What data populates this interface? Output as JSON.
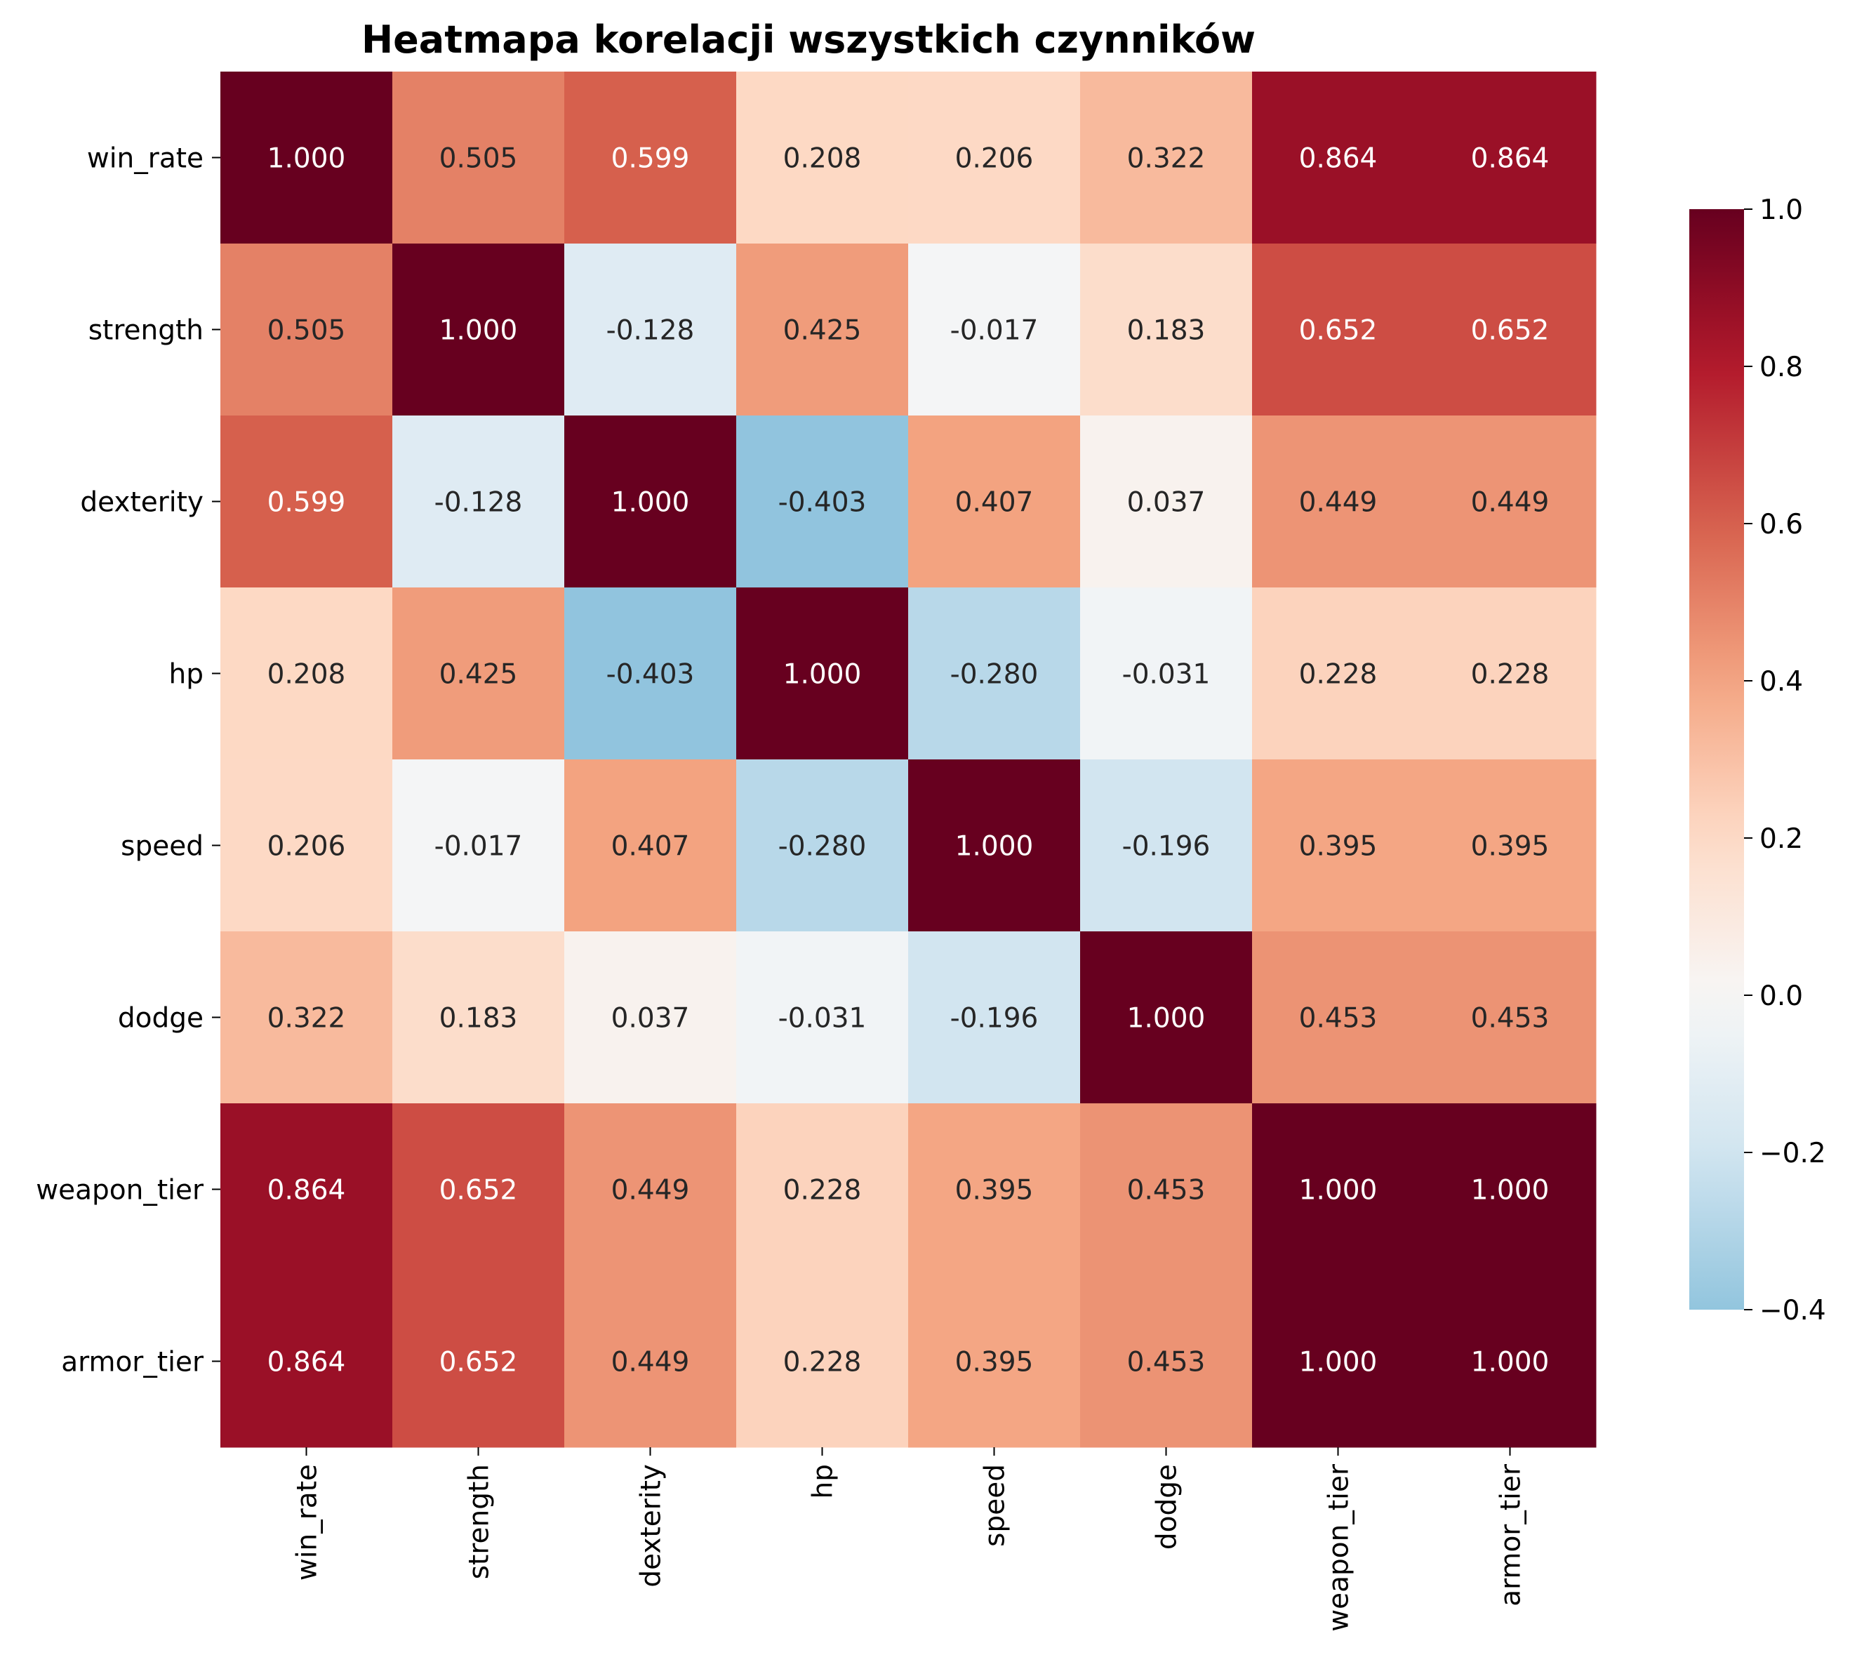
{
  "chart_data": {
    "type": "heatmap",
    "title": "Heatmapa korelacji wszystkich czynników",
    "rows": [
      "win_rate",
      "strength",
      "dexterity",
      "hp",
      "speed",
      "dodge",
      "weapon_tier",
      "armor_tier"
    ],
    "columns": [
      "win_rate",
      "strength",
      "dexterity",
      "hp",
      "speed",
      "dodge",
      "weapon_tier",
      "armor_tier"
    ],
    "values": [
      [
        1.0,
        0.505,
        0.599,
        0.208,
        0.206,
        0.322,
        0.864,
        0.864
      ],
      [
        0.505,
        1.0,
        -0.128,
        0.425,
        -0.017,
        0.183,
        0.652,
        0.652
      ],
      [
        0.599,
        -0.128,
        1.0,
        -0.403,
        0.407,
        0.037,
        0.449,
        0.449
      ],
      [
        0.208,
        0.425,
        -0.403,
        1.0,
        -0.28,
        -0.031,
        0.228,
        0.228
      ],
      [
        0.206,
        -0.017,
        0.407,
        -0.28,
        1.0,
        -0.196,
        0.395,
        0.395
      ],
      [
        0.322,
        0.183,
        0.037,
        -0.031,
        -0.196,
        1.0,
        0.453,
        0.453
      ],
      [
        0.864,
        0.652,
        0.449,
        0.228,
        0.395,
        0.453,
        1.0,
        1.0
      ],
      [
        0.864,
        0.652,
        0.449,
        0.228,
        0.395,
        0.453,
        1.0,
        1.0
      ]
    ],
    "cell_labels": [
      [
        "1.000",
        "0.505",
        "0.599",
        "0.208",
        "0.206",
        "0.322",
        "0.864",
        "0.864"
      ],
      [
        "0.505",
        "1.000",
        "-0.128",
        "0.425",
        "-0.017",
        "0.183",
        "0.652",
        "0.652"
      ],
      [
        "0.599",
        "-0.128",
        "1.000",
        "-0.403",
        "0.407",
        "0.037",
        "0.449",
        "0.449"
      ],
      [
        "0.208",
        "0.425",
        "-0.403",
        "1.000",
        "-0.280",
        "-0.031",
        "0.228",
        "0.228"
      ],
      [
        "0.206",
        "-0.017",
        "0.407",
        "-0.280",
        "1.000",
        "-0.196",
        "0.395",
        "0.395"
      ],
      [
        "0.322",
        "0.183",
        "0.037",
        "-0.031",
        "-0.196",
        "1.000",
        "0.453",
        "0.453"
      ],
      [
        "0.864",
        "0.652",
        "0.449",
        "0.228",
        "0.395",
        "0.453",
        "1.000",
        "1.000"
      ],
      [
        "0.864",
        "0.652",
        "0.449",
        "0.228",
        "0.395",
        "0.453",
        "1.000",
        "1.000"
      ]
    ],
    "colorbar": {
      "colormap": "RdBu_r",
      "vmin": -0.4,
      "vmax": 1.0,
      "center": 0.0,
      "ticks": [
        1.0,
        0.8,
        0.6,
        0.4,
        0.2,
        0.0,
        -0.2,
        -0.4
      ],
      "tick_labels": [
        "1.0",
        "0.8",
        "0.6",
        "0.4",
        "0.2",
        "0.0",
        "−0.2",
        "−0.4"
      ]
    }
  }
}
